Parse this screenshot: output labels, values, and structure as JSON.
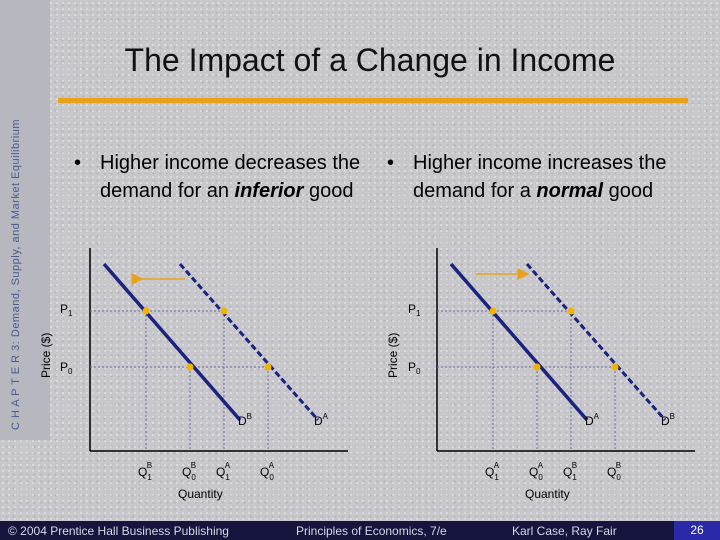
{
  "sidebar": {
    "text": "C H A P T E R 3: Demand, Supply, and Market Equilibrium"
  },
  "title": "The Impact of a Change in Income",
  "bullets": {
    "left": {
      "symbol": "•",
      "prefix": "Higher income decreases the demand for an ",
      "emphasis": "inferior",
      "suffix": " good"
    },
    "right": {
      "symbol": "•",
      "prefix": "Higher income increases the demand for a ",
      "emphasis": "normal",
      "suffix": " good"
    }
  },
  "charts": {
    "left": {
      "price_axis_label": "Price ($)",
      "quantity_axis_label": "Quantity",
      "p1_label": "P",
      "p1_sub": "1",
      "p0_label": "P",
      "p0_sub": "0",
      "curve_new_label": "D",
      "curve_new_sup": "B",
      "curve_old_label": "D",
      "curve_old_sup": "A",
      "q_labels": [
        {
          "text": "Q",
          "sub": "1",
          "sup": "B"
        },
        {
          "text": "Q",
          "sub": "0",
          "sup": "B"
        },
        {
          "text": "Q",
          "sub": "1",
          "sup": "A"
        },
        {
          "text": "Q",
          "sub": "0",
          "sup": "A"
        }
      ]
    },
    "right": {
      "price_axis_label": "Price ($)",
      "quantity_axis_label": "Quantity",
      "p1_label": "P",
      "p1_sub": "1",
      "p0_label": "P",
      "p0_sub": "0",
      "curve_old_label": "D",
      "curve_old_sup": "A",
      "curve_new_label": "D",
      "curve_new_sup": "B",
      "q_labels": [
        {
          "text": "Q",
          "sub": "1",
          "sup": "A"
        },
        {
          "text": "Q",
          "sub": "0",
          "sup": "A"
        },
        {
          "text": "Q",
          "sub": "1",
          "sup": "B"
        },
        {
          "text": "Q",
          "sub": "0",
          "sup": "B"
        }
      ]
    }
  },
  "footer": {
    "copyright": "© 2004 Prentice Hall Business Publishing",
    "book": "Principles of Economics, 7/e",
    "authors": "Karl Case, Ray Fair",
    "page_number": "26"
  },
  "colors": {
    "accent": "#e8a21a",
    "demand_a": "#1a237e",
    "demand_b": "#1a237e",
    "point": "#f2b400",
    "footer_bg": "#14143c",
    "page_badge": "#2a2aa8"
  }
}
